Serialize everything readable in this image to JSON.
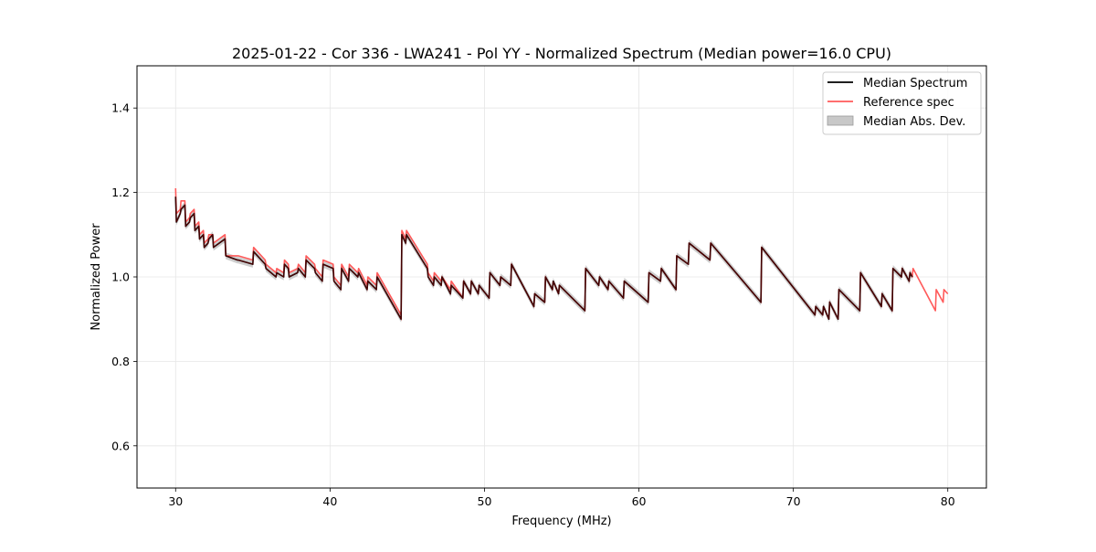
{
  "chart_data": {
    "type": "line",
    "title": "2025-01-22 - Cor 336 - LWA241 - Pol YY - Normalized Spectrum (Median power=16.0 CPU)",
    "xlabel": "Frequency (MHz)",
    "ylabel": "Normalized Power",
    "xlim": [
      27.5,
      82.5
    ],
    "ylim": [
      0.5,
      1.5
    ],
    "xticks": [
      30,
      40,
      50,
      60,
      70,
      80
    ],
    "xtick_labels": [
      "30",
      "40",
      "50",
      "60",
      "70",
      "80"
    ],
    "yticks": [
      0.6,
      0.8,
      1.0,
      1.2,
      1.4
    ],
    "ytick_labels": [
      "0.6",
      "0.8",
      "1.0",
      "1.2",
      "1.4"
    ],
    "grid": true,
    "legend_position": "top-right",
    "legend": [
      "Median Spectrum",
      "Reference spec",
      "Median Abs. Dev."
    ],
    "colors": {
      "median": "#000000",
      "reference": "#ff5a5a",
      "mad": "#c8c8c8"
    },
    "series": [
      {
        "name": "Median Spectrum",
        "x": [
          30.0,
          30.05,
          30.3,
          30.35,
          30.6,
          30.65,
          30.9,
          30.95,
          31.2,
          31.25,
          31.5,
          31.55,
          31.8,
          31.85,
          32.1,
          32.15,
          32.4,
          32.45,
          33.2,
          33.25,
          34.0,
          34.05,
          35.0,
          35.05,
          35.8,
          35.85,
          36.5,
          36.55,
          37.0,
          37.05,
          37.3,
          37.35,
          37.9,
          37.95,
          38.4,
          38.45,
          39.0,
          39.05,
          39.5,
          39.55,
          40.2,
          40.25,
          40.7,
          40.75,
          41.2,
          41.25,
          41.8,
          41.85,
          42.4,
          42.45,
          43.0,
          43.05,
          44.6,
          44.65,
          44.9,
          44.95,
          46.3,
          46.35,
          46.7,
          46.75,
          47.2,
          47.25,
          47.8,
          47.85,
          48.6,
          48.65,
          49.1,
          49.15,
          49.6,
          49.65,
          50.3,
          50.35,
          51.0,
          51.05,
          51.7,
          51.75,
          53.2,
          53.25,
          53.9,
          53.95,
          54.4,
          54.45,
          54.8,
          54.85,
          56.5,
          56.55,
          57.4,
          57.45,
          58.0,
          58.05,
          59.0,
          59.05,
          60.6,
          60.65,
          61.4,
          61.45,
          62.4,
          62.45,
          63.2,
          63.25,
          64.6,
          64.65,
          67.9,
          67.95,
          71.4,
          71.45,
          71.9,
          71.95,
          72.3,
          72.35,
          72.9,
          72.95,
          74.3,
          74.35,
          75.7,
          75.75,
          76.4,
          76.45,
          77.0,
          77.05,
          77.5,
          77.55,
          77.7
        ],
        "y": [
          1.19,
          1.13,
          1.15,
          1.16,
          1.17,
          1.12,
          1.13,
          1.14,
          1.15,
          1.11,
          1.12,
          1.09,
          1.1,
          1.07,
          1.08,
          1.09,
          1.1,
          1.07,
          1.09,
          1.05,
          1.04,
          1.04,
          1.03,
          1.06,
          1.03,
          1.02,
          1.0,
          1.01,
          1.0,
          1.03,
          1.02,
          1.0,
          1.01,
          1.02,
          1.0,
          1.04,
          1.02,
          1.01,
          0.99,
          1.03,
          1.02,
          0.99,
          0.97,
          1.02,
          0.99,
          1.02,
          1.0,
          1.01,
          0.97,
          0.99,
          0.97,
          1.0,
          0.9,
          1.1,
          1.08,
          1.1,
          1.02,
          1.0,
          0.98,
          1.0,
          0.98,
          1.0,
          0.96,
          0.98,
          0.95,
          0.99,
          0.96,
          0.99,
          0.96,
          0.98,
          0.95,
          1.01,
          0.98,
          1.0,
          0.98,
          1.03,
          0.93,
          0.96,
          0.94,
          1.0,
          0.97,
          0.99,
          0.96,
          0.98,
          0.92,
          1.02,
          0.98,
          1.0,
          0.97,
          0.99,
          0.95,
          0.99,
          0.94,
          1.01,
          0.99,
          1.02,
          0.97,
          1.05,
          1.03,
          1.08,
          1.04,
          1.08,
          0.94,
          1.07,
          0.91,
          0.93,
          0.91,
          0.93,
          0.9,
          0.94,
          0.9,
          0.97,
          0.92,
          1.01,
          0.93,
          0.96,
          0.92,
          1.02,
          1.0,
          1.02,
          0.99,
          1.01,
          1.0
        ]
      },
      {
        "name": "Reference spec",
        "x": [
          30.0,
          30.05,
          30.3,
          30.35,
          30.6,
          30.65,
          30.9,
          30.95,
          31.2,
          31.25,
          31.5,
          31.55,
          31.8,
          31.85,
          32.1,
          32.15,
          32.4,
          32.45,
          33.2,
          33.25,
          34.0,
          34.05,
          35.0,
          35.05,
          35.8,
          35.85,
          36.5,
          36.55,
          37.0,
          37.05,
          37.3,
          37.35,
          37.9,
          37.95,
          38.4,
          38.45,
          39.0,
          39.05,
          39.5,
          39.55,
          40.2,
          40.25,
          40.7,
          40.75,
          41.2,
          41.25,
          41.8,
          41.85,
          42.4,
          42.45,
          43.0,
          43.05,
          44.6,
          44.65,
          44.9,
          44.95,
          46.3,
          46.35,
          46.7,
          46.75,
          47.2,
          47.25,
          47.8,
          47.85,
          48.6,
          48.65,
          49.1,
          49.15,
          49.6,
          49.65,
          50.3,
          50.35,
          51.0,
          51.05,
          51.7,
          51.75,
          53.2,
          53.25,
          53.9,
          53.95,
          54.4,
          54.45,
          54.8,
          54.85,
          56.5,
          56.55,
          57.4,
          57.45,
          58.0,
          58.05,
          59.0,
          59.05,
          60.6,
          60.65,
          61.4,
          61.45,
          62.4,
          62.45,
          63.2,
          63.25,
          64.6,
          64.65,
          67.9,
          67.95,
          71.4,
          71.45,
          71.9,
          71.95,
          72.3,
          72.35,
          72.9,
          72.95,
          74.3,
          74.35,
          75.7,
          75.75,
          76.4,
          76.45,
          77.0,
          77.05,
          77.5,
          77.55,
          77.7,
          77.75,
          79.2,
          79.25,
          79.7,
          79.75,
          80.0
        ],
        "y": [
          1.21,
          1.15,
          1.16,
          1.18,
          1.18,
          1.13,
          1.14,
          1.15,
          1.16,
          1.12,
          1.13,
          1.1,
          1.11,
          1.08,
          1.09,
          1.1,
          1.1,
          1.08,
          1.1,
          1.05,
          1.05,
          1.05,
          1.04,
          1.07,
          1.04,
          1.03,
          1.01,
          1.02,
          1.01,
          1.04,
          1.03,
          1.01,
          1.02,
          1.03,
          1.01,
          1.05,
          1.03,
          1.02,
          1.0,
          1.04,
          1.03,
          1.0,
          0.98,
          1.03,
          1.0,
          1.03,
          1.01,
          1.02,
          0.98,
          1.0,
          0.98,
          1.01,
          0.91,
          1.11,
          1.09,
          1.11,
          1.03,
          1.01,
          0.99,
          1.01,
          0.99,
          1.0,
          0.97,
          0.99,
          0.95,
          0.99,
          0.96,
          0.99,
          0.96,
          0.98,
          0.95,
          1.01,
          0.98,
          1.0,
          0.98,
          1.03,
          0.93,
          0.96,
          0.94,
          1.0,
          0.97,
          0.99,
          0.96,
          0.98,
          0.92,
          1.02,
          0.98,
          1.0,
          0.97,
          0.99,
          0.95,
          0.99,
          0.94,
          1.01,
          0.99,
          1.02,
          0.97,
          1.05,
          1.03,
          1.08,
          1.04,
          1.08,
          0.94,
          1.07,
          0.91,
          0.93,
          0.91,
          0.93,
          0.9,
          0.94,
          0.9,
          0.97,
          0.92,
          1.01,
          0.93,
          0.96,
          0.92,
          1.02,
          1.0,
          1.02,
          0.99,
          1.01,
          1.0,
          1.02,
          0.92,
          0.97,
          0.94,
          0.97,
          0.96
        ]
      }
    ],
    "mad_band_halfwidth": 0.008
  }
}
